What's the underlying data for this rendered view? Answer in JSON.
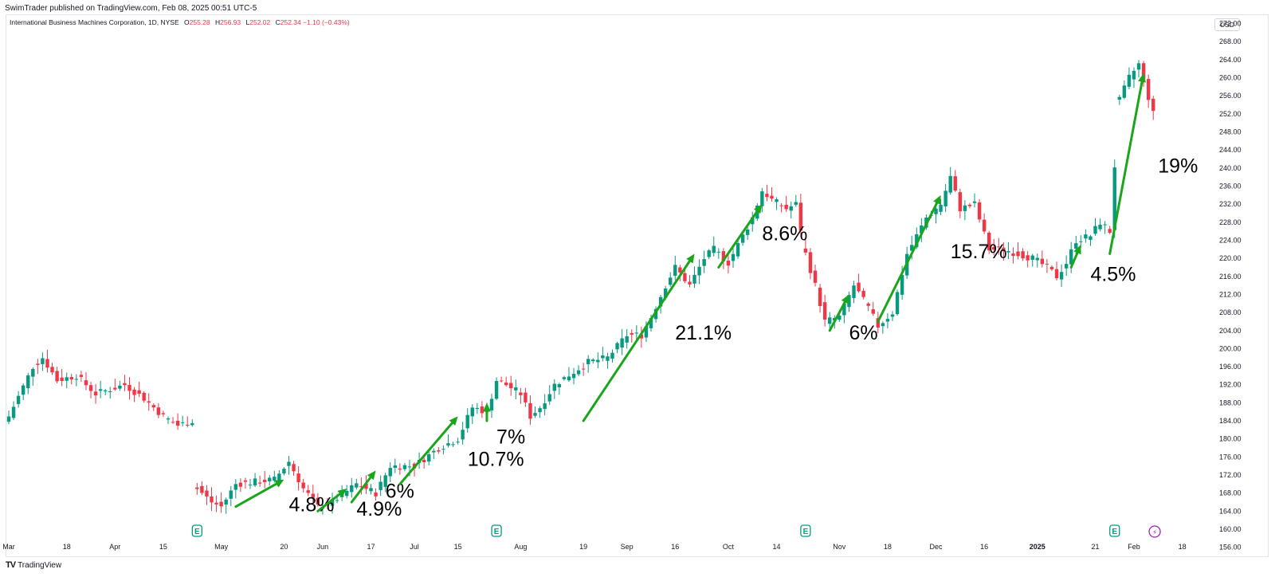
{
  "header": {
    "publisher": "SwimTrader published on TradingView.com, Feb 08, 2025 00:51 UTC-5",
    "symbol": "International Business Machines Corporation, 1D, NYSE",
    "open_label": "O",
    "open": "255.28",
    "high_label": "H",
    "high": "256.93",
    "low_label": "L",
    "low": "252.02",
    "close_label": "C",
    "close": "252.34",
    "change": "−1.10 (−0.43%)",
    "currency": "USD"
  },
  "footer": {
    "logo_mark": "TV",
    "logo_text": "TradingView"
  },
  "colors": {
    "up": "#089981",
    "down": "#f23645",
    "arrow": "#1aa51a",
    "earnings": "#089981",
    "dividend": "#9c27b0"
  },
  "chart_data": {
    "type": "candlestick",
    "title": "International Business Machines Corporation, 1D, NYSE",
    "xlabel": "",
    "ylabel": "USD",
    "ylim": [
      154,
      276
    ],
    "grid": false,
    "ytick_values": [
      156,
      160,
      164,
      168,
      172,
      176,
      180,
      184,
      188,
      192,
      196,
      200,
      204,
      208,
      212,
      216,
      220,
      224,
      228,
      232,
      236,
      240,
      244,
      248,
      252,
      256,
      260,
      264,
      268,
      272
    ],
    "ytick_labels": [
      "156.00",
      "160.00",
      "164.00",
      "168.00",
      "172.00",
      "176.00",
      "180.00",
      "184.00",
      "188.00",
      "192.00",
      "196.00",
      "200.00",
      "204.00",
      "208.00",
      "212.00",
      "216.00",
      "220.00",
      "224.00",
      "228.00",
      "232.00",
      "236.00",
      "240.00",
      "244.00",
      "248.00",
      "252.00",
      "256.00",
      "260.00",
      "264.00",
      "268.00",
      "272.00"
    ],
    "xticks": [
      {
        "label": "Mar",
        "i": 0
      },
      {
        "label": "18",
        "i": 12
      },
      {
        "label": "Apr",
        "i": 22
      },
      {
        "label": "15",
        "i": 32
      },
      {
        "label": "May",
        "i": 44
      },
      {
        "label": "20",
        "i": 57
      },
      {
        "label": "Jun",
        "i": 65
      },
      {
        "label": "17",
        "i": 75
      },
      {
        "label": "Jul",
        "i": 84
      },
      {
        "label": "15",
        "i": 93
      },
      {
        "label": "Aug",
        "i": 106
      },
      {
        "label": "19",
        "i": 119
      },
      {
        "label": "Sep",
        "i": 128
      },
      {
        "label": "16",
        "i": 138
      },
      {
        "label": "Oct",
        "i": 149
      },
      {
        "label": "14",
        "i": 159
      },
      {
        "label": "Nov",
        "i": 172
      },
      {
        "label": "18",
        "i": 182
      },
      {
        "label": "Dec",
        "i": 192
      },
      {
        "label": "16",
        "i": 202
      },
      {
        "label": "2025",
        "i": 213,
        "bold": true
      },
      {
        "label": "21",
        "i": 225
      },
      {
        "label": "Feb",
        "i": 233
      },
      {
        "label": "18",
        "i": 243
      }
    ],
    "earnings_markers": [
      {
        "i": 39,
        "label": "E"
      },
      {
        "i": 101,
        "label": "E"
      },
      {
        "i": 165,
        "label": "E"
      },
      {
        "i": 229,
        "label": "E"
      }
    ],
    "dividend_markers": [
      {
        "i": 234,
        "label": "⚡"
      }
    ],
    "anchors": [
      {
        "i": 0,
        "c": 185
      },
      {
        "i": 5,
        "c": 196
      },
      {
        "i": 7,
        "c": 198
      },
      {
        "i": 10,
        "c": 193
      },
      {
        "i": 14,
        "c": 194
      },
      {
        "i": 18,
        "c": 190
      },
      {
        "i": 24,
        "c": 192
      },
      {
        "i": 28,
        "c": 189
      },
      {
        "i": 32,
        "c": 185
      },
      {
        "i": 35,
        "c": 183
      },
      {
        "i": 38,
        "c": 184
      },
      {
        "i": 39,
        "c": 169
      },
      {
        "i": 42,
        "c": 166
      },
      {
        "i": 44,
        "c": 165
      },
      {
        "i": 47,
        "c": 170
      },
      {
        "i": 55,
        "c": 171
      },
      {
        "i": 58,
        "c": 175
      },
      {
        "i": 61,
        "c": 169
      },
      {
        "i": 64,
        "c": 165
      },
      {
        "i": 67,
        "c": 166
      },
      {
        "i": 72,
        "c": 170
      },
      {
        "i": 76,
        "c": 168
      },
      {
        "i": 79,
        "c": 174
      },
      {
        "i": 84,
        "c": 174
      },
      {
        "i": 89,
        "c": 178
      },
      {
        "i": 93,
        "c": 180
      },
      {
        "i": 96,
        "c": 187
      },
      {
        "i": 99,
        "c": 186
      },
      {
        "i": 101,
        "c": 193
      },
      {
        "i": 103,
        "c": 192
      },
      {
        "i": 106,
        "c": 190
      },
      {
        "i": 108,
        "c": 185
      },
      {
        "i": 110,
        "c": 187
      },
      {
        "i": 113,
        "c": 192
      },
      {
        "i": 120,
        "c": 197
      },
      {
        "i": 124,
        "c": 198
      },
      {
        "i": 128,
        "c": 203
      },
      {
        "i": 131,
        "c": 203
      },
      {
        "i": 133,
        "c": 207
      },
      {
        "i": 136,
        "c": 214
      },
      {
        "i": 138,
        "c": 218
      },
      {
        "i": 141,
        "c": 214
      },
      {
        "i": 144,
        "c": 220
      },
      {
        "i": 146,
        "c": 222
      },
      {
        "i": 149,
        "c": 219
      },
      {
        "i": 151,
        "c": 223
      },
      {
        "i": 154,
        "c": 229
      },
      {
        "i": 156,
        "c": 235
      },
      {
        "i": 158,
        "c": 233
      },
      {
        "i": 161,
        "c": 231
      },
      {
        "i": 163,
        "c": 232
      },
      {
        "i": 165,
        "c": 221
      },
      {
        "i": 167,
        "c": 214
      },
      {
        "i": 169,
        "c": 206
      },
      {
        "i": 172,
        "c": 207
      },
      {
        "i": 175,
        "c": 214
      },
      {
        "i": 178,
        "c": 209
      },
      {
        "i": 180,
        "c": 205
      },
      {
        "i": 183,
        "c": 208
      },
      {
        "i": 186,
        "c": 221
      },
      {
        "i": 190,
        "c": 229
      },
      {
        "i": 193,
        "c": 232
      },
      {
        "i": 195,
        "c": 238
      },
      {
        "i": 197,
        "c": 231
      },
      {
        "i": 200,
        "c": 232
      },
      {
        "i": 203,
        "c": 222
      },
      {
        "i": 206,
        "c": 222
      },
      {
        "i": 209,
        "c": 221
      },
      {
        "i": 212,
        "c": 220
      },
      {
        "i": 215,
        "c": 218
      },
      {
        "i": 217,
        "c": 216
      },
      {
        "i": 219,
        "c": 219
      },
      {
        "i": 221,
        "c": 224
      },
      {
        "i": 224,
        "c": 225
      },
      {
        "i": 226,
        "c": 228
      },
      {
        "i": 228,
        "c": 226
      },
      {
        "i": 230,
        "c": 255
      },
      {
        "i": 232,
        "c": 260
      },
      {
        "i": 234,
        "c": 263
      },
      {
        "i": 237,
        "c": 252
      }
    ],
    "gaps_after": [
      38,
      164,
      229
    ],
    "moves": [
      {
        "label": "4.8%",
        "x1": 47,
        "y1": 165,
        "x2": 57,
        "y2": 171,
        "lx": 58,
        "ly": 164
      },
      {
        "label": "4.9%",
        "x1": 64,
        "y1": 164,
        "x2": 70,
        "y2": 169,
        "lx": 72,
        "ly": 163
      },
      {
        "label": "6%",
        "x1": 71,
        "y1": 166,
        "x2": 76,
        "y2": 173,
        "lx": 78,
        "ly": 167
      },
      {
        "label": "10.7%",
        "x1": 81,
        "y1": 170,
        "x2": 93,
        "y2": 185,
        "lx": 95,
        "ly": 174
      },
      {
        "label": "7%",
        "x1": 99,
        "y1": 184,
        "x2": 99,
        "y2": 188,
        "lx": 101,
        "ly": 179
      },
      {
        "label": "21.1%",
        "x1": 119,
        "y1": 184,
        "x2": 142,
        "y2": 221,
        "lx": 138,
        "ly": 202
      },
      {
        "label": "8.6%",
        "x1": 147,
        "y1": 218,
        "x2": 156,
        "y2": 232,
        "lx": 156,
        "ly": 224
      },
      {
        "label": "6%",
        "x1": 170,
        "y1": 204,
        "x2": 174,
        "y2": 212,
        "lx": 174,
        "ly": 202
      },
      {
        "label": "15.7%",
        "x1": 180,
        "y1": 206,
        "x2": 193,
        "y2": 234,
        "lx": 195,
        "ly": 220
      },
      {
        "label": "4.5%",
        "x1": 220,
        "y1": 218,
        "x2": 222,
        "y2": 223,
        "lx": 224,
        "ly": 215
      },
      {
        "label": "19%",
        "x1": 228,
        "y1": 221,
        "x2": 235,
        "y2": 261,
        "lx": 238,
        "ly": 239
      }
    ]
  }
}
